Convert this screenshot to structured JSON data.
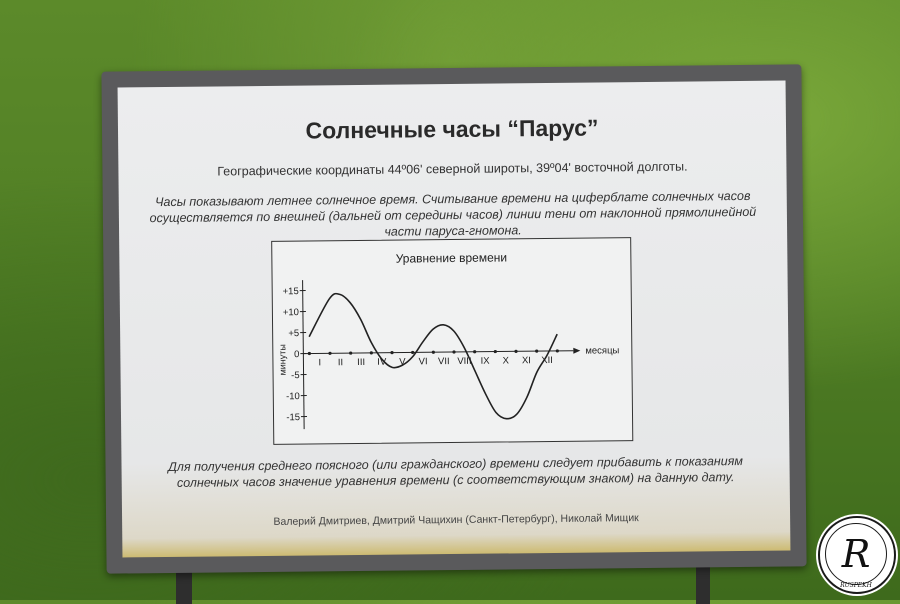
{
  "sign": {
    "title": "Солнечные часы “Парус”",
    "coordinates": "Географические координаты 44º06' северной широты,  39º04' восточной долготы.",
    "description": "Часы показывают летнее солнечное время.  Считывание времени на циферблате солнечных часов осуществляется по внешней (дальней от середины часов) линии тени от наклонной прямолинейной части паруса-гномона.",
    "note": "Для получения среднего поясного (или гражданского) времени следует прибавить к показаниям солнечных часов значение уравнения времени (с соответствующим знаком) на данную дату.",
    "credits": "Валерий Дмитриев, Дмитрий Чащихин (Санкт-Петербург), Николай Мищик"
  },
  "chart_data": {
    "type": "line",
    "title": "Уравнение времени",
    "xlabel": "месяцы",
    "ylabel": "минуты",
    "y_ticks": [
      "+15",
      "+10",
      "+5",
      "0",
      "-5",
      "-10",
      "-15"
    ],
    "y_tick_values": [
      15,
      10,
      5,
      0,
      -5,
      -10,
      -15
    ],
    "x_ticks": [
      "I",
      "II",
      "III",
      "IV",
      "V",
      "VI",
      "VII",
      "VIII",
      "IX",
      "X",
      "XI",
      "XII"
    ],
    "x": [
      0,
      1,
      1.5,
      2,
      2.5,
      3,
      3.5,
      4,
      4.5,
      5,
      5.5,
      6,
      6.5,
      7,
      7.5,
      8,
      8.5,
      9,
      9.5,
      10,
      10.5,
      11,
      11.5,
      12
    ],
    "values": [
      4,
      13,
      14,
      12,
      8,
      2.5,
      -1.5,
      -3.5,
      -3,
      -1,
      2.5,
      5.5,
      6.5,
      5,
      1,
      -4.5,
      -10,
      -14.5,
      -16,
      -15,
      -11,
      -5,
      -1,
      4
    ],
    "ylim": [
      -18,
      18
    ],
    "grid": false
  },
  "watermark": {
    "letter": "R",
    "caption": "RUSPEKH"
  }
}
